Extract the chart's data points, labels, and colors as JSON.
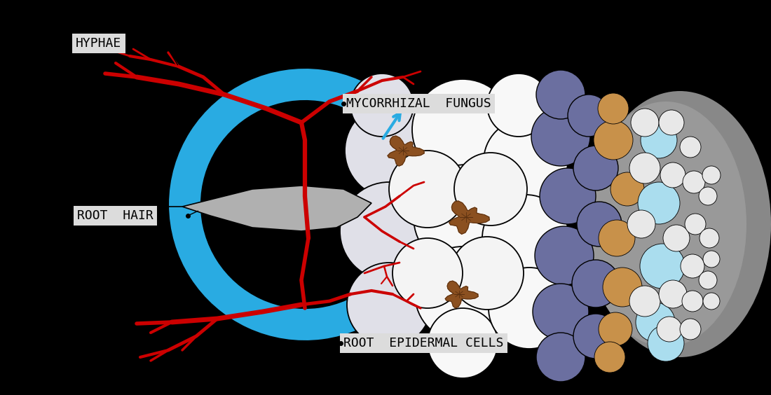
{
  "bg_color": "#000000",
  "hyphae_color": "#cc0000",
  "blue_color": "#29abe2",
  "root_gray": "#b0b0b0",
  "white_cell": "#ffffff",
  "light_cell": "#e8e8f0",
  "dark_blue_cell": "#6b6fa0",
  "tan_cell": "#c8914a",
  "light_blue_cell": "#aaddee",
  "gray_bg": "#888888",
  "label_bg": "#dcdcdc",
  "label_text": "#000000",
  "brown": "#8B5020",
  "labels": {
    "hyphae": "HYPHAE",
    "mycorrhizal": "MYCORRHIZAL  FUNGUS",
    "root_hair": "ROOT  HAIR",
    "root_epidermal": "ROOT  EPIDERMAL CELLS"
  }
}
